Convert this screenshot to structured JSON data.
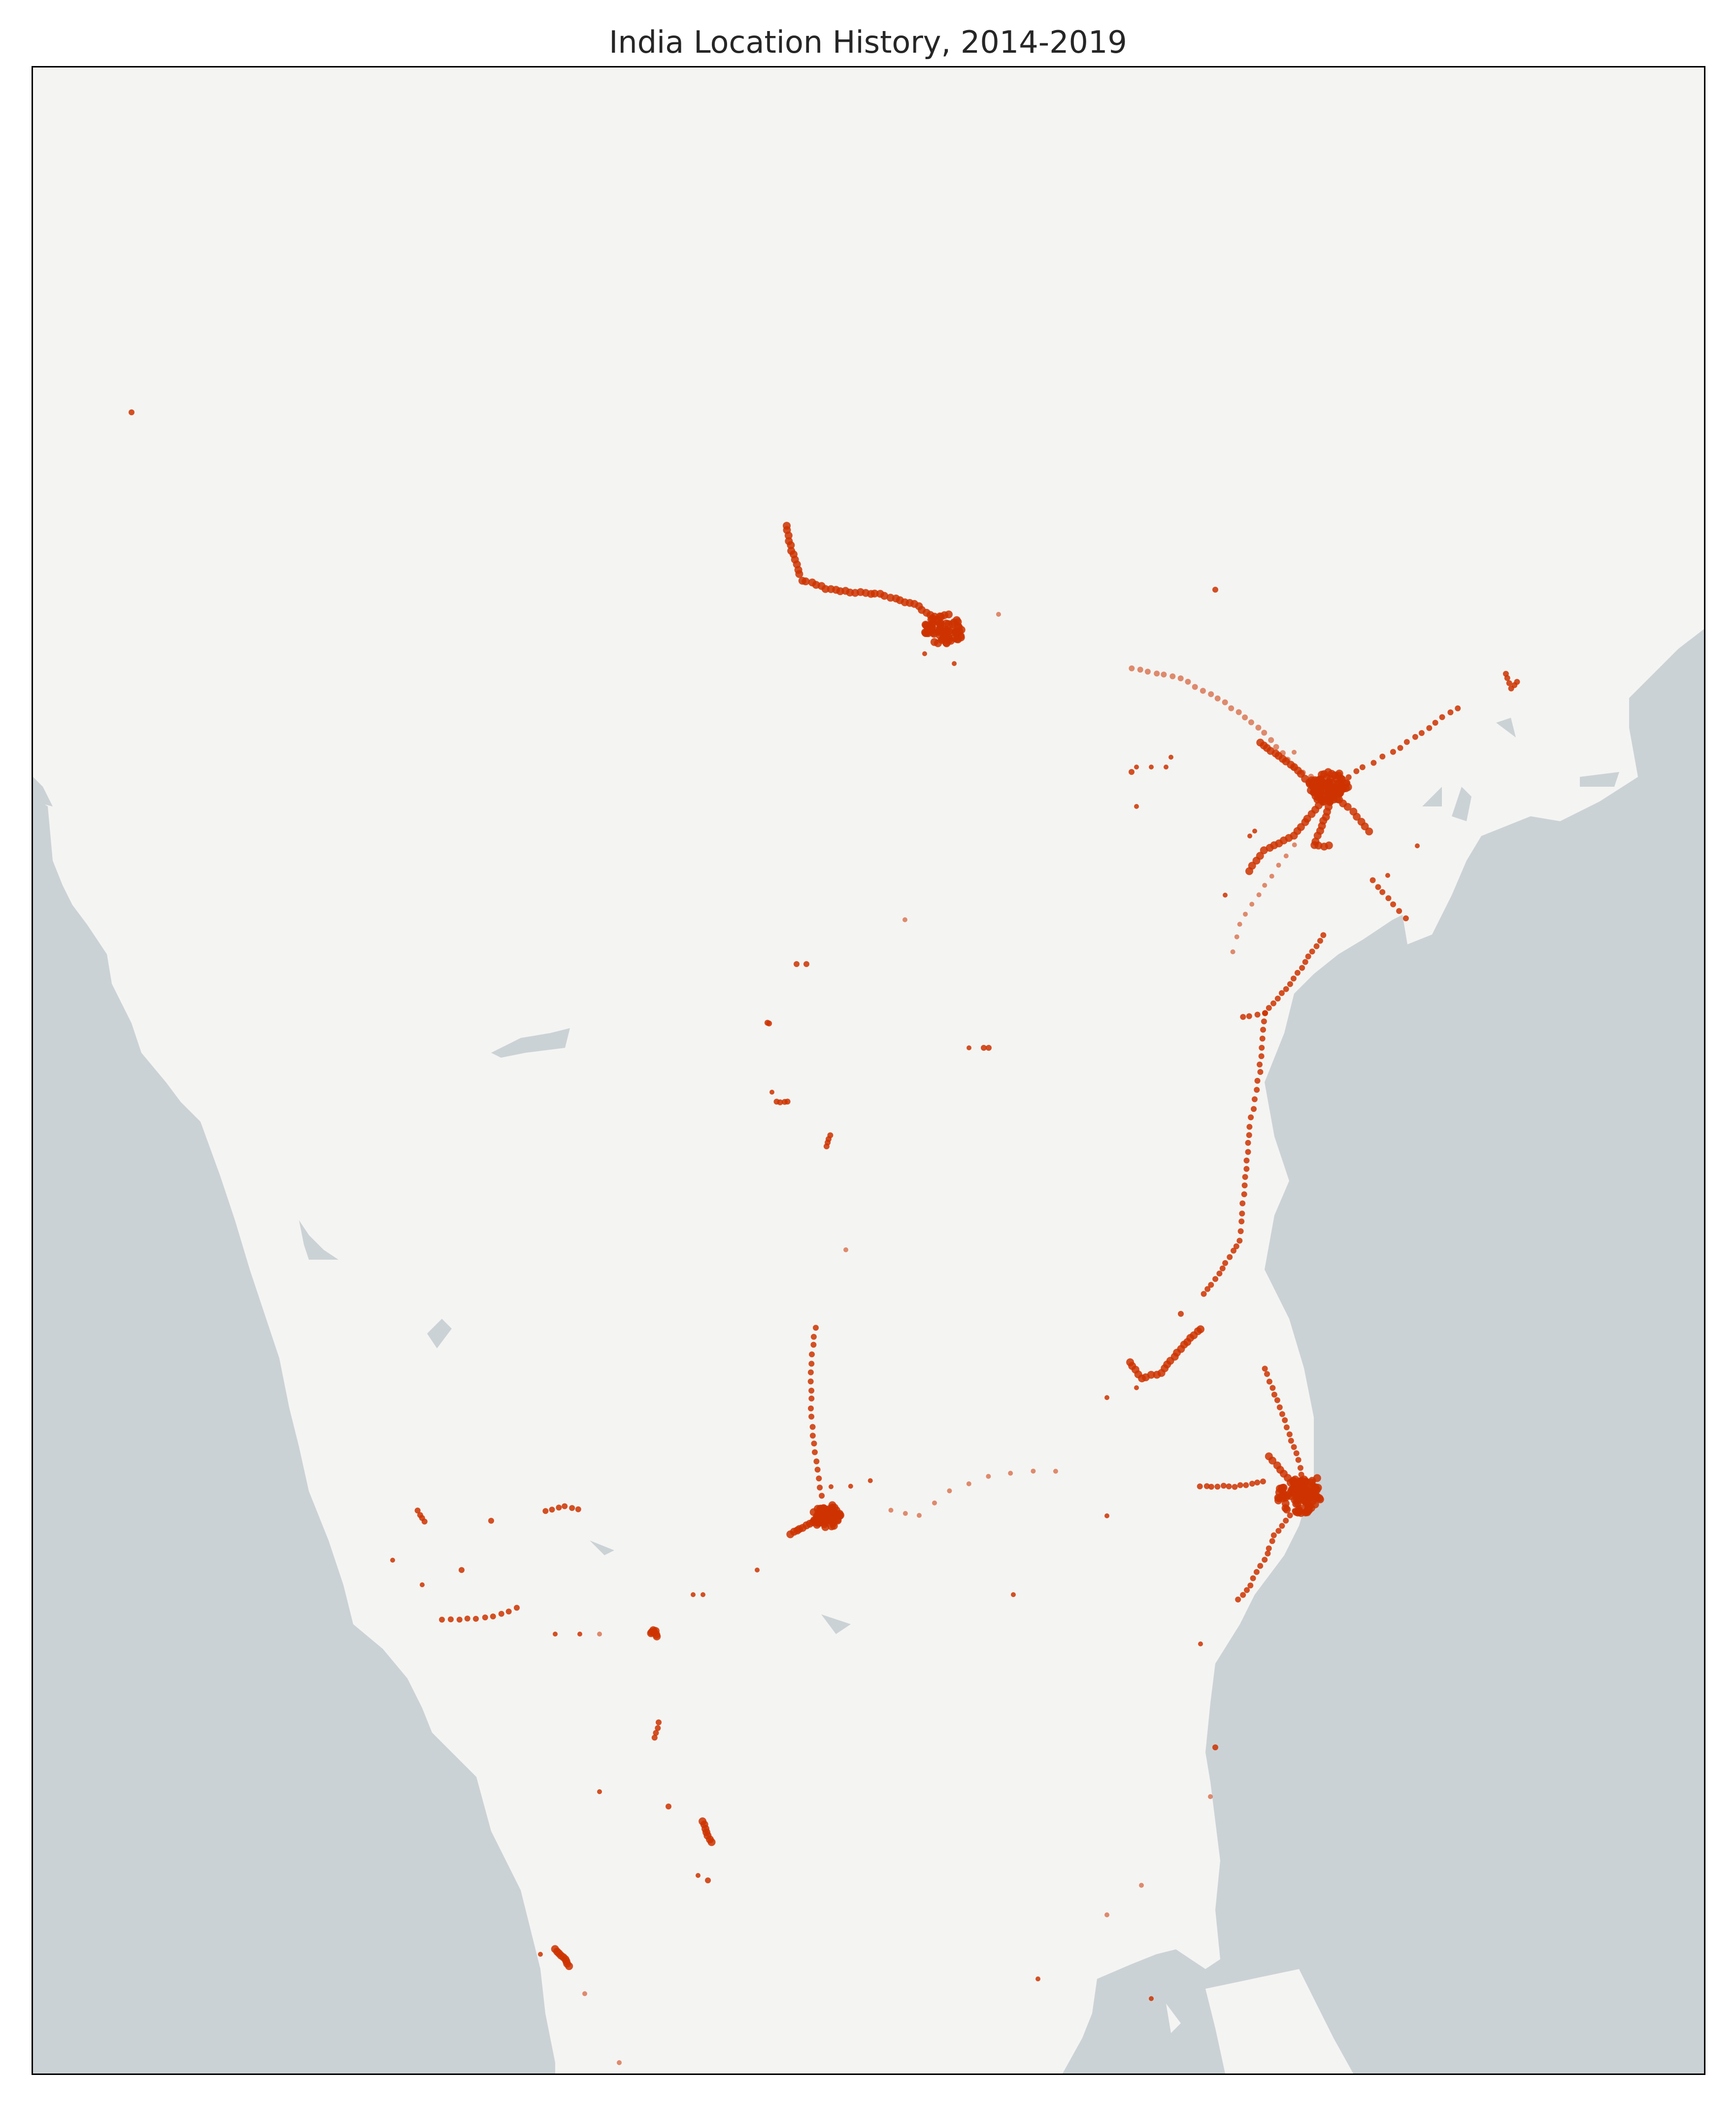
{
  "title": "India Location History, 2014-2019",
  "colors": {
    "land": "#f4f4f2",
    "water": "#cbd2d5",
    "points": "#cc3300",
    "frame": "#000000",
    "title": "#262626"
  },
  "map": {
    "region": "South India",
    "marker": "scatter-points"
  }
}
